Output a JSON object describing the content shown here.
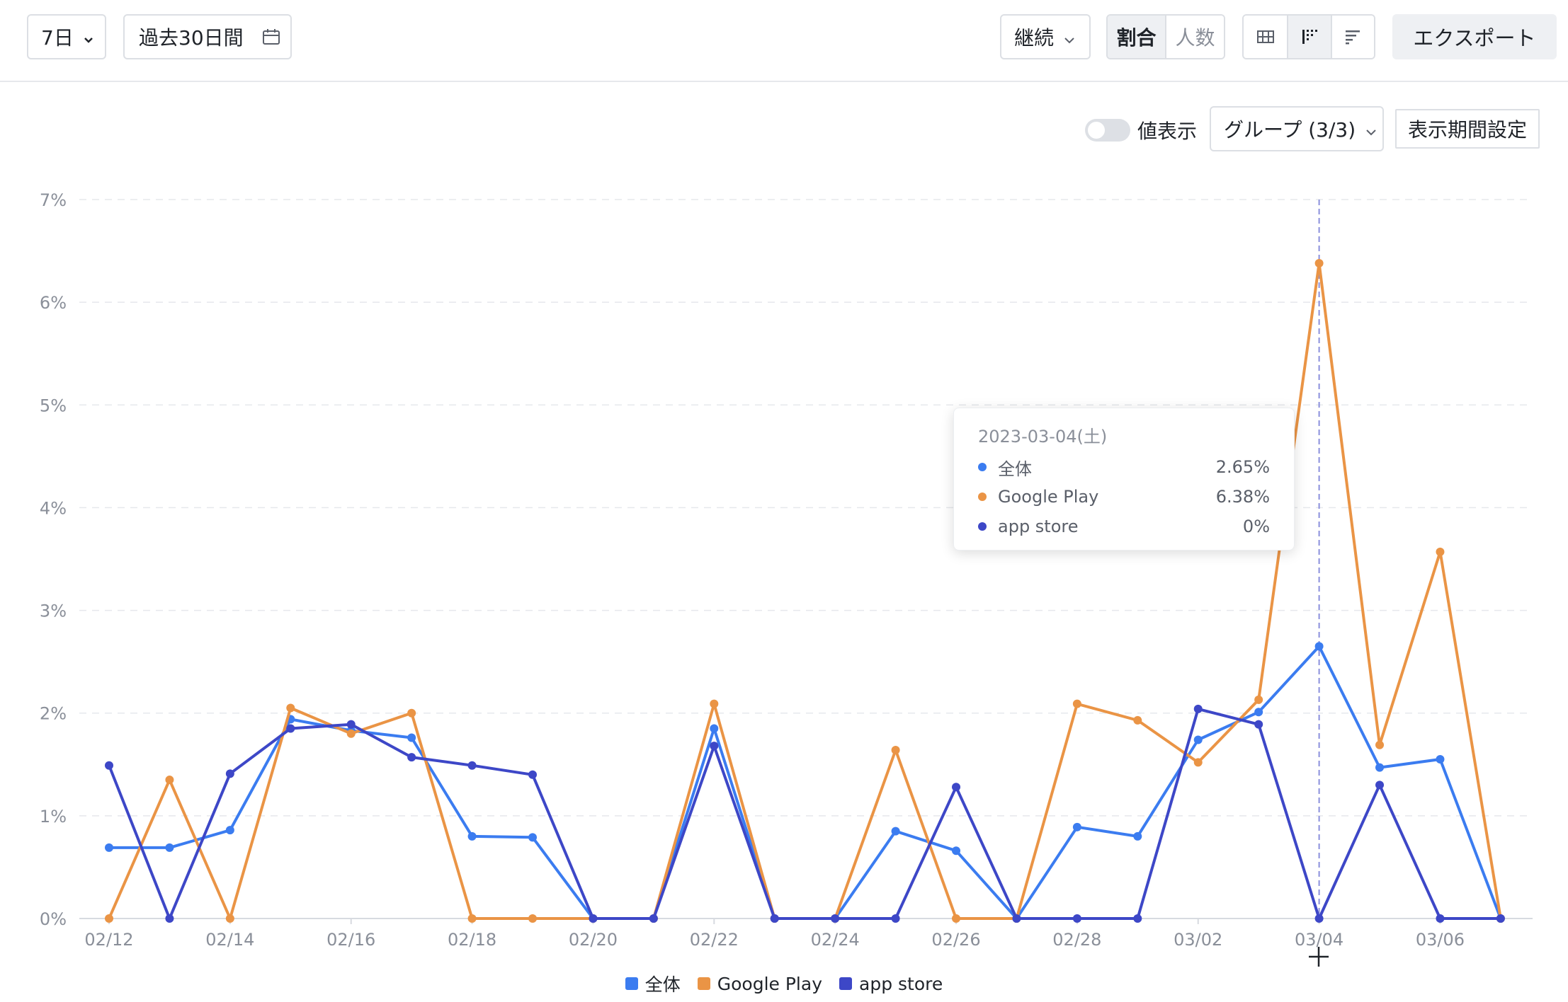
{
  "toolbar": {
    "interval": "7日",
    "date_range": "過去30日間",
    "mode": "継続",
    "ratio_tab": "割合",
    "count_tab": "人数",
    "export_label": "エクスポート"
  },
  "chart_controls": {
    "value_display_label": "値表示",
    "group_label": "グループ (3/3)",
    "period_setting_label": "表示期間設定"
  },
  "tooltip": {
    "date": "2023-03-04(土)",
    "rows": [
      {
        "name": "全体",
        "value": "2.65%",
        "color": "#3b7cf0"
      },
      {
        "name": "Google Play",
        "value": "6.38%",
        "color": "#ea9445"
      },
      {
        "name": "app store",
        "value": "0%",
        "color": "#3d47c7"
      }
    ]
  },
  "chart_data": {
    "type": "line",
    "x": [
      "02/12",
      "02/13",
      "02/14",
      "02/15",
      "02/16",
      "02/17",
      "02/18",
      "02/19",
      "02/20",
      "02/21",
      "02/22",
      "02/23",
      "02/24",
      "02/25",
      "02/26",
      "02/27",
      "02/28",
      "03/01",
      "03/02",
      "03/03",
      "03/04",
      "03/05",
      "03/06",
      "03/07"
    ],
    "xtick_labels": [
      "02/12",
      "02/14",
      "02/16",
      "02/18",
      "02/20",
      "02/22",
      "02/24",
      "02/26",
      "02/28",
      "03/02",
      "03/04",
      "03/06"
    ],
    "ylim": [
      0,
      7
    ],
    "yticks": [
      "0%",
      "1%",
      "2%",
      "3%",
      "4%",
      "5%",
      "6%",
      "7%"
    ],
    "y_unit": "%",
    "grid": true,
    "legend_position": "bottom",
    "highlight_x": "03/04",
    "series": [
      {
        "name": "全体",
        "color": "#3b7cf0",
        "values": [
          0.69,
          0.69,
          0.86,
          1.94,
          1.83,
          1.76,
          0.8,
          0.79,
          0,
          0,
          1.85,
          0,
          0,
          0.85,
          0.66,
          0,
          0.89,
          0.8,
          1.74,
          2.01,
          2.65,
          1.47,
          1.55,
          0
        ]
      },
      {
        "name": "Google Play",
        "color": "#ea9445",
        "values": [
          0,
          1.35,
          0,
          2.05,
          1.8,
          2.0,
          0,
          0,
          0,
          0,
          2.09,
          0,
          0,
          1.64,
          0,
          0,
          2.09,
          1.93,
          1.52,
          2.13,
          6.38,
          1.69,
          3.57,
          0
        ]
      },
      {
        "name": "app store",
        "color": "#3d47c7",
        "values": [
          1.49,
          0,
          1.41,
          1.85,
          1.89,
          1.57,
          1.49,
          1.4,
          0,
          0,
          1.68,
          0,
          0,
          0,
          1.28,
          0,
          0,
          0,
          2.04,
          1.89,
          0,
          1.3,
          0,
          0
        ]
      }
    ]
  }
}
